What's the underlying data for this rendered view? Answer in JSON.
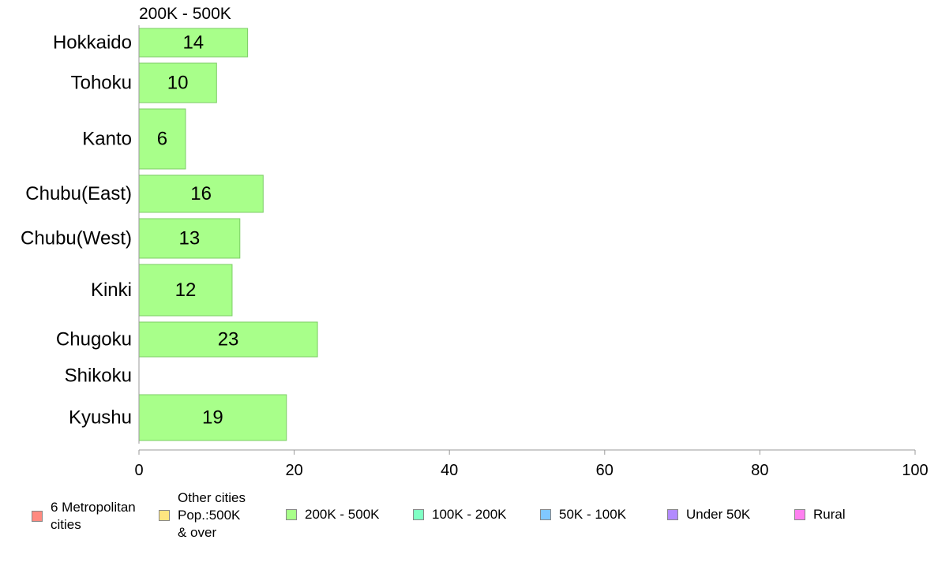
{
  "chart_data": {
    "type": "bar",
    "orientation": "horizontal",
    "title": "200K - 500K",
    "categories": [
      "Hokkaido",
      "Tohoku",
      "Kanto",
      "Chubu(East)",
      "Chubu(West)",
      "Kinki",
      "Chugoku",
      "Shikoku",
      "Kyushu"
    ],
    "values": [
      14,
      10,
      6,
      16,
      13,
      12,
      23,
      0,
      19
    ],
    "data_labels": [
      "14",
      "10",
      "6",
      "16",
      "13",
      "12",
      "23",
      "",
      "19"
    ],
    "xlim": [
      0,
      100
    ],
    "x_ticks": [
      0,
      20,
      40,
      60,
      80,
      100
    ],
    "grid": false,
    "bar_color": "#a8ff8a",
    "bar_border_color": "#7ccc66",
    "legend": {
      "placement": "bottom",
      "items": [
        {
          "label": "6 Metropolitan\n cities",
          "color": "#ff8a80"
        },
        {
          "label": "Other cities\nPop.:500K\n & over",
          "color": "#ffe680"
        },
        {
          "label": "200K - 500K",
          "color": "#a8ff8a"
        },
        {
          "label": "100K - 200K",
          "color": "#80ffc4"
        },
        {
          "label": "50K - 100K",
          "color": "#80c8ff"
        },
        {
          "label": "Under 50K",
          "color": "#b28aff"
        },
        {
          "label": "Rural",
          "color": "#ff80f0"
        }
      ]
    }
  }
}
